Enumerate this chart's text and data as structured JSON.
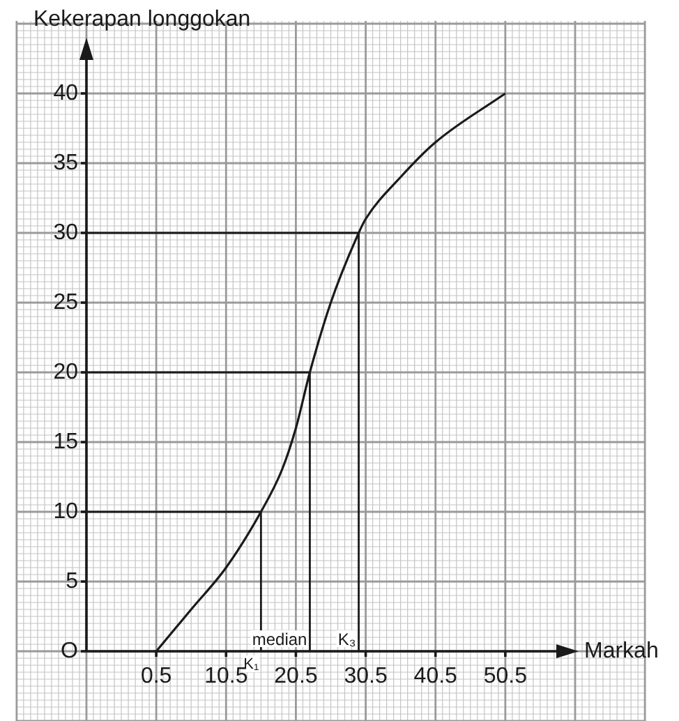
{
  "chart_data": {
    "type": "line",
    "xlabel": "Markah",
    "ylabel": "Kekerapan longgokan",
    "x": [
      0.5,
      5.5,
      10.5,
      15.5,
      18.5,
      20.5,
      22.5,
      25.5,
      29.5,
      30.5,
      35.5,
      40.5,
      50.5
    ],
    "series": [
      {
        "color": "#1a1a1a",
        "values": [
          0,
          3,
          6,
          10,
          13,
          16,
          20,
          25,
          30,
          31,
          34,
          36.5,
          40
        ]
      }
    ],
    "xlim": [
      -9.5,
      61
    ],
    "ylim": [
      0,
      44
    ],
    "xticks": [
      0.5,
      10.5,
      20.5,
      30.5,
      40.5,
      50.5
    ],
    "yticks": [
      {
        "value": 0,
        "label": "O"
      },
      5,
      10,
      15,
      20,
      25,
      30,
      35,
      40
    ],
    "grid": true,
    "marker": "none",
    "ref_lines": [
      {
        "axis": "y",
        "value": 10,
        "label": null
      },
      {
        "axis": "y",
        "value": 20,
        "label": null
      },
      {
        "axis": "y",
        "value": 30,
        "label": null
      },
      {
        "axis": "x",
        "value": 15.5,
        "label": "K₁"
      },
      {
        "axis": "x",
        "value": 22.5,
        "label": "median"
      },
      {
        "axis": "x",
        "value": 29.5,
        "label": "K₃"
      }
    ]
  }
}
